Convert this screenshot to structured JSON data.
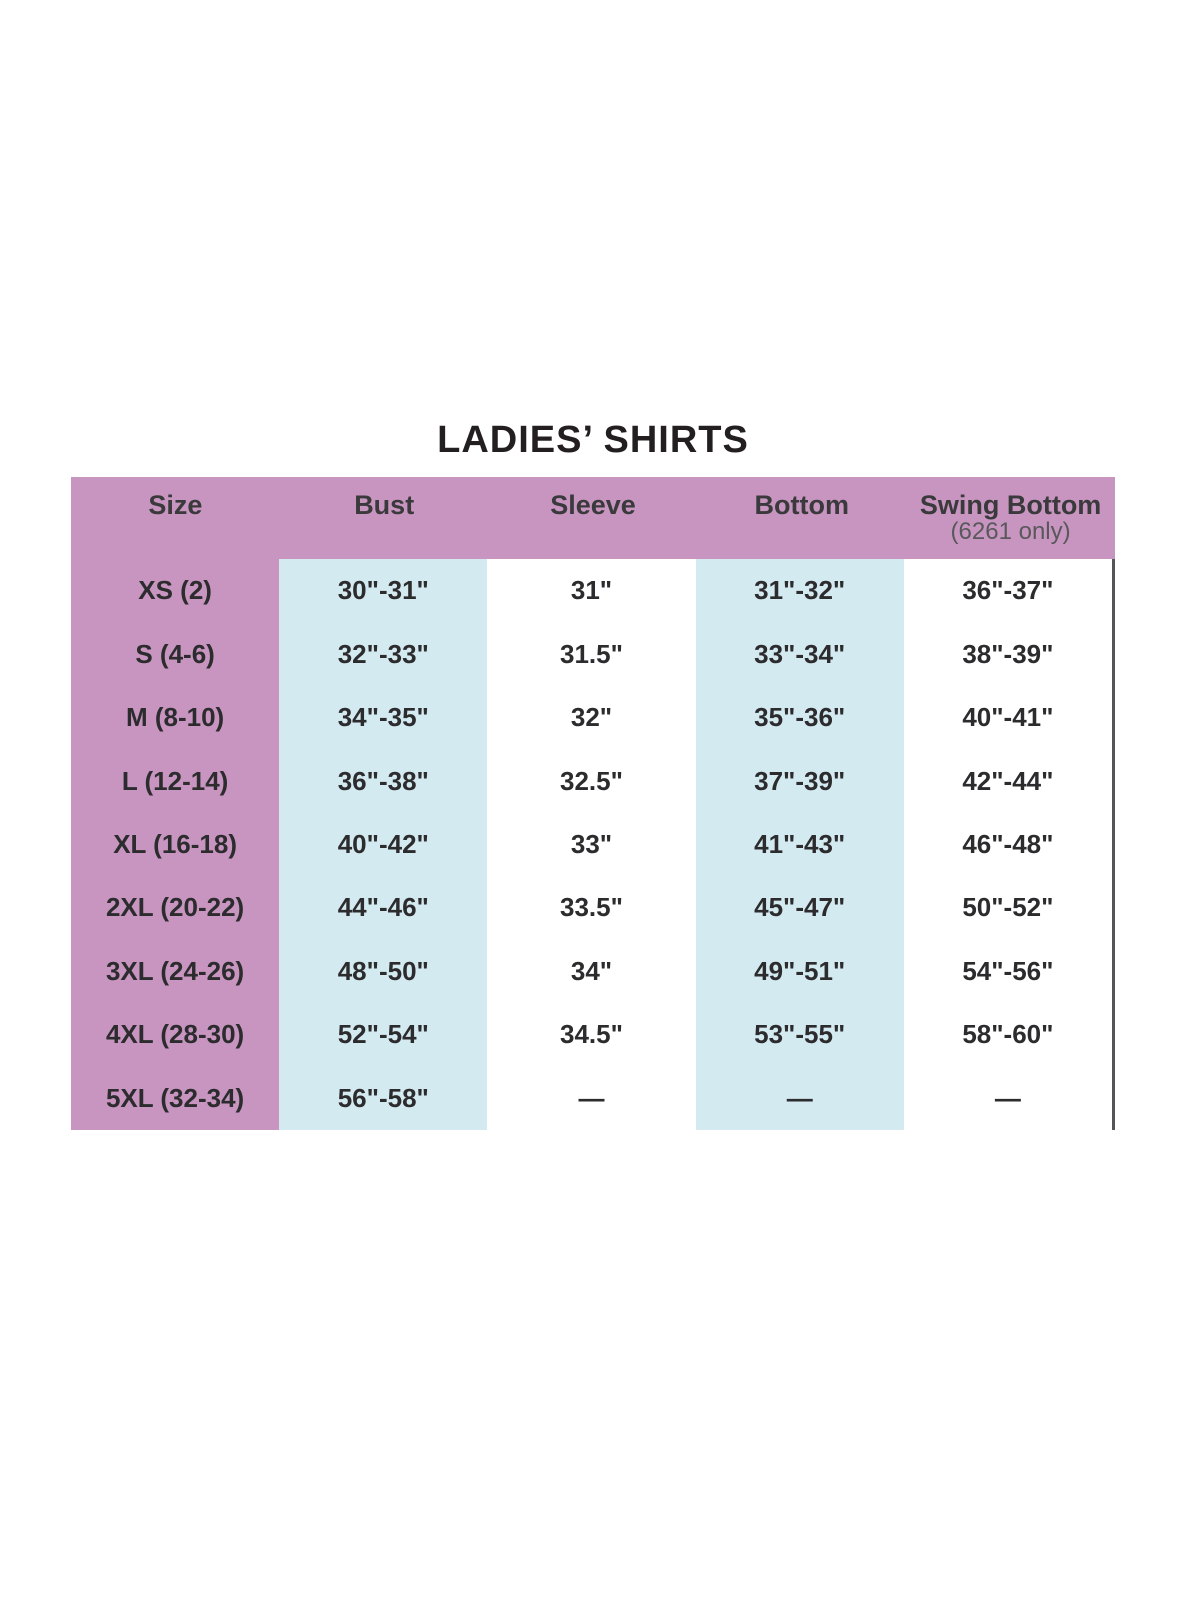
{
  "title": "LADIES’ SHIRTS",
  "header": {
    "columns": [
      {
        "label": "Size",
        "sublabel": ""
      },
      {
        "label": "Bust",
        "sublabel": ""
      },
      {
        "label": "Sleeve",
        "sublabel": ""
      },
      {
        "label": "Bottom",
        "sublabel": ""
      },
      {
        "label": "Swing Bottom",
        "sublabel": "(6261 only)"
      }
    ]
  },
  "chart_data": {
    "type": "table",
    "title": "LADIES’ SHIRTS",
    "columns": [
      "Size",
      "Bust",
      "Sleeve",
      "Bottom",
      "Swing Bottom (6261 only)"
    ],
    "rows": [
      [
        "XS (2)",
        "30\"-31\"",
        "31\"",
        "31\"-32\"",
        "36\"-37\""
      ],
      [
        "S (4-6)",
        "32\"-33\"",
        "31.5\"",
        "33\"-34\"",
        "38\"-39\""
      ],
      [
        "M (8-10)",
        "34\"-35\"",
        "32\"",
        "35\"-36\"",
        "40\"-41\""
      ],
      [
        "L (12-14)",
        "36\"-38\"",
        "32.5\"",
        "37\"-39\"",
        "42\"-44\""
      ],
      [
        "XL (16-18)",
        "40\"-42\"",
        "33\"",
        "41\"-43\"",
        "46\"-48\""
      ],
      [
        "2XL (20-22)",
        "44\"-46\"",
        "33.5\"",
        "45\"-47\"",
        "50\"-52\""
      ],
      [
        "3XL (24-26)",
        "48\"-50\"",
        "34\"",
        "49\"-51\"",
        "54\"-56\""
      ],
      [
        "4XL (28-30)",
        "52\"-54\"",
        "34.5\"",
        "53\"-55\"",
        "58\"-60\""
      ],
      [
        "5XL (32-34)",
        "56\"-58\"",
        "—",
        "—",
        "—"
      ]
    ]
  },
  "colors": {
    "header_bg": "#c795c0",
    "highlight_bg": "#d3eaf0",
    "title_text": "#231f20",
    "header_text": "#3a393b",
    "subheader_text": "#59585b",
    "body_text": "#2c2b2d",
    "border": "#545559"
  }
}
